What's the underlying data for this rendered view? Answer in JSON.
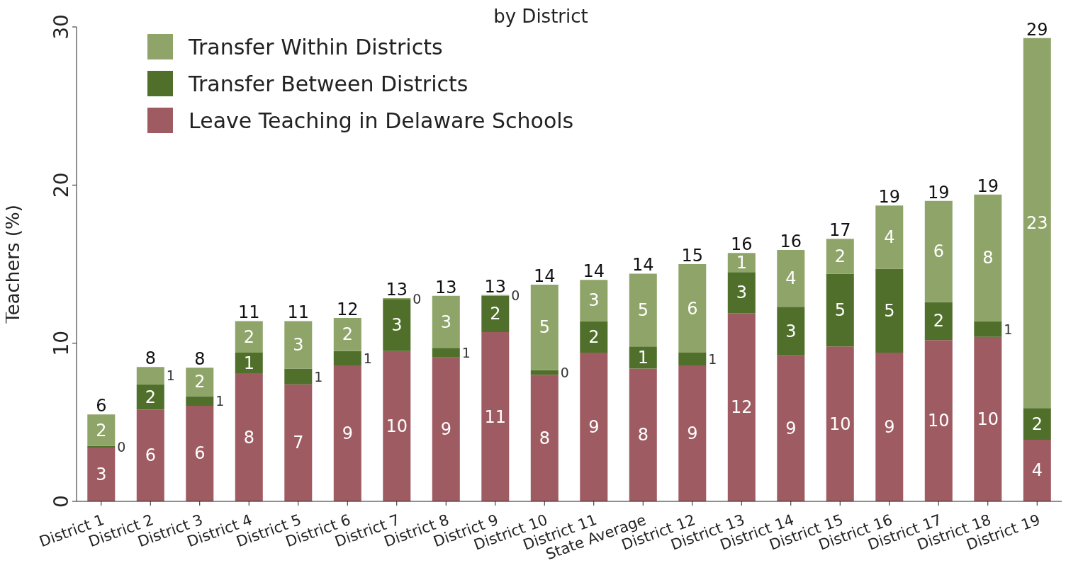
{
  "chart_data": {
    "type": "bar",
    "title": "by District",
    "ylabel": "Teachers (%)",
    "categories": [
      "District 1",
      "District 2",
      "District 3",
      "District 4",
      "District 5",
      "District 6",
      "District 7",
      "District 8",
      "District 9",
      "District 10",
      "District 11",
      "State Average",
      "District 12",
      "District 13",
      "District 14",
      "District 15",
      "District 16",
      "District 17",
      "District 18",
      "District 19"
    ],
    "stacked": true,
    "ylim": [
      0,
      30
    ],
    "yticks": [
      0,
      10,
      20,
      30
    ],
    "grid": false,
    "legend": "top left",
    "series": [
      {
        "name": "Leave Teaching in Delaware Schools",
        "color": "#9e5b62",
        "values": [
          3.4,
          5.8,
          6.05,
          8.1,
          7.4,
          8.6,
          9.5,
          9.1,
          10.7,
          8.0,
          9.4,
          8.4,
          8.6,
          11.9,
          9.2,
          9.8,
          9.4,
          10.2,
          10.4,
          3.9
        ],
        "value_labels": [
          "3",
          "6",
          "6",
          "8",
          "7",
          "9",
          "10",
          "9",
          "11",
          "8",
          "9",
          "8",
          "9",
          "12",
          "9",
          "10",
          "9",
          "10",
          "10",
          "4"
        ]
      },
      {
        "name": "Transfer Between Districts",
        "color": "#4f6f2a",
        "values": [
          0.1,
          1.6,
          0.6,
          1.3,
          1.0,
          0.9,
          3.3,
          0.6,
          2.3,
          0.3,
          2.0,
          1.4,
          0.8,
          2.6,
          3.1,
          4.6,
          5.3,
          2.4,
          1.0,
          2.0
        ],
        "value_labels": [
          "0",
          "2",
          "1",
          "1",
          "1",
          "1",
          "3",
          "1",
          "2",
          "0",
          "2",
          "1",
          "1",
          "3",
          "3",
          "5",
          "5",
          "2",
          "1",
          "2"
        ]
      },
      {
        "name": "Transfer Within Districts",
        "color": "#8fa468",
        "values": [
          2.0,
          1.1,
          1.8,
          2.0,
          3.0,
          2.1,
          0.05,
          3.3,
          0.05,
          5.4,
          2.6,
          4.6,
          5.6,
          1.2,
          3.6,
          2.2,
          4.0,
          6.4,
          8.0,
          23.4
        ],
        "value_labels": [
          "2",
          "1",
          "2",
          "2",
          "3",
          "2",
          "0",
          "3",
          "0",
          "5",
          "3",
          "5",
          "6",
          "1",
          "4",
          "2",
          "4",
          "6",
          "8",
          "23"
        ]
      }
    ],
    "totals": [
      "6",
      "8",
      "8",
      "11",
      "11",
      "12",
      "13",
      "13",
      "13",
      "14",
      "14",
      "14",
      "15",
      "16",
      "16",
      "17",
      "19",
      "19",
      "19",
      "29"
    ]
  }
}
